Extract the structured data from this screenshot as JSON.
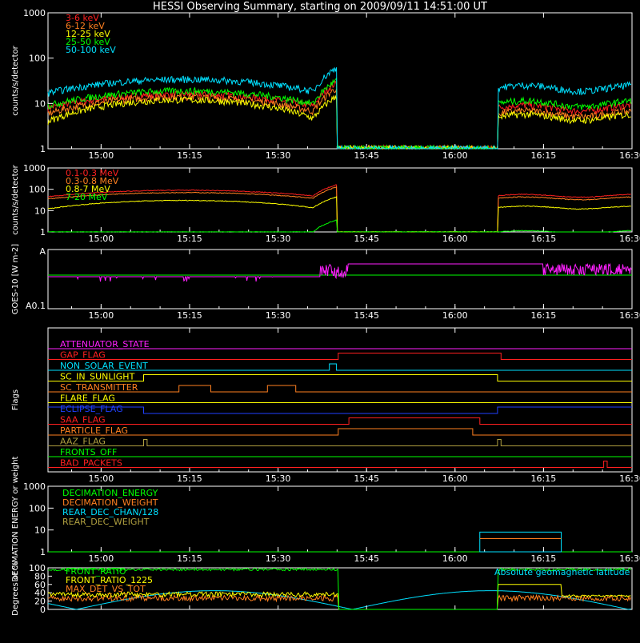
{
  "title": "HESSI Observing Summary, starting on 2009/09/11 14:51:00 UT",
  "time_ticks": [
    "15:00",
    "15:15",
    "15:30",
    "15:45",
    "16:00",
    "16:15",
    "16:30"
  ],
  "colors": {
    "red": "#ff2020",
    "orange": "#ff8020",
    "yellow": "#ffff00",
    "green": "#00ff00",
    "cyan": "#00e0ff",
    "magenta": "#ff20ff",
    "blue": "#2040ff",
    "olive": "#b0a040",
    "white": "#ffffff",
    "darkred": "#ff2020"
  },
  "chart_data": [
    {
      "type": "line",
      "id": "lightcurve_low",
      "ylabel": "counts/s/detector",
      "y_scale": "log",
      "ylim": [
        1,
        1000
      ],
      "y_ticks": [
        "1",
        "10",
        "100",
        "1000"
      ],
      "series": [
        {
          "name": "3-6 keV",
          "color": "#ff2020",
          "start": 8,
          "peak": 16,
          "post": 8
        },
        {
          "name": "6-12 keV",
          "color": "#ff8020",
          "start": 6,
          "peak": 14,
          "post": 6
        },
        {
          "name": "12-25 keV",
          "color": "#ffff00",
          "start": 4,
          "peak": 12,
          "post": 5
        },
        {
          "name": "25-50 keV",
          "color": "#00ff00",
          "start": 9,
          "peak": 19,
          "post": 10
        },
        {
          "name": "50-100 keV",
          "color": "#00e0ff",
          "start": 17,
          "peak": 34,
          "post": 22
        }
      ]
    },
    {
      "type": "line",
      "id": "lightcurve_high",
      "ylabel": "counts/s/detector",
      "y_scale": "log",
      "ylim": [
        1,
        1000
      ],
      "y_ticks": [
        "1",
        "10",
        "100",
        "1000"
      ],
      "series": [
        {
          "name": "0.1-0.3 MeV",
          "color": "#ff2020",
          "start": 45,
          "peak": 90,
          "post": 50
        },
        {
          "name": "0.3-0.8 MeV",
          "color": "#ff8020",
          "start": 35,
          "peak": 70,
          "post": 38
        },
        {
          "name": "0.8-7 MeV",
          "color": "#ffff00",
          "start": 12,
          "peak": 30,
          "post": 14
        },
        {
          "name": "7-20 MeV",
          "color": "#00ff00",
          "start": 1,
          "peak": 1,
          "post": 1
        }
      ]
    },
    {
      "type": "line",
      "id": "goes",
      "ylabel": "GOES-10 [W m-2]",
      "y_ticks_top": "A",
      "y_ticks_bottom": "A0.1",
      "series": [
        {
          "name": "GOES low",
          "color": "#ff20ff"
        },
        {
          "name": "GOES level",
          "color": "#00ff00"
        }
      ]
    },
    {
      "type": "line",
      "id": "flags",
      "ylabel": "Flags",
      "series": [
        {
          "name": "ATTENUATOR_STATE",
          "color": "#ff20ff",
          "segments": [
            [
              14.85,
              0
            ]
          ]
        },
        {
          "name": "GAP_FLAG",
          "color": "#ff2020",
          "segments": [
            [
              14.85,
              0
            ],
            [
              15.67,
              1
            ],
            [
              16.13,
              0
            ]
          ]
        },
        {
          "name": "NON_SOLAR_EVENT",
          "color": "#00e0ff",
          "segments": [
            [
              14.85,
              0
            ],
            [
              15.645,
              1
            ],
            [
              15.665,
              0
            ]
          ]
        },
        {
          "name": "SC_IN_SUNLIGHT",
          "color": "#ffff00",
          "segments": [
            [
              14.85,
              0
            ],
            [
              15.12,
              1
            ],
            [
              16.12,
              0
            ]
          ]
        },
        {
          "name": "SC_TRANSMITTER",
          "color": "#ff8020",
          "segments": [
            [
              14.85,
              0
            ],
            [
              15.22,
              1
            ],
            [
              15.31,
              0
            ],
            [
              15.47,
              1
            ],
            [
              15.55,
              0
            ]
          ]
        },
        {
          "name": "FLARE_FLAG",
          "color": "#ffff00",
          "segments": [
            [
              14.85,
              0
            ]
          ]
        },
        {
          "name": "ECLIPSE_FLAG",
          "color": "#2040ff",
          "segments": [
            [
              14.85,
              1
            ],
            [
              15.12,
              0
            ],
            [
              16.12,
              1
            ]
          ]
        },
        {
          "name": "SAA_FLAG",
          "color": "#ff2020",
          "segments": [
            [
              14.85,
              0
            ],
            [
              15.7,
              1
            ],
            [
              16.07,
              0
            ]
          ]
        },
        {
          "name": "PARTICLE_FLAG",
          "color": "#ff8020",
          "segments": [
            [
              14.85,
              0
            ],
            [
              15.67,
              1
            ],
            [
              16.05,
              0
            ]
          ]
        },
        {
          "name": "AAZ_FLAG",
          "color": "#b0a040",
          "segments": [
            [
              14.85,
              0
            ],
            [
              15.12,
              1
            ],
            [
              15.13,
              0
            ],
            [
              16.12,
              1
            ],
            [
              16.13,
              0
            ]
          ]
        },
        {
          "name": "FRONTS_OFF",
          "color": "#00ff00",
          "segments": [
            [
              14.85,
              0
            ]
          ]
        },
        {
          "name": "BAD_PACKETS",
          "color": "#ff2020",
          "segments": [
            [
              14.85,
              0
            ],
            [
              16.42,
              1
            ],
            [
              16.43,
              0
            ]
          ]
        }
      ]
    },
    {
      "type": "line",
      "id": "decimation",
      "ylabel": "DECIMATION ENERGY or weight",
      "y_scale": "log",
      "ylim": [
        1,
        1000
      ],
      "y_ticks": [
        "1",
        "10",
        "100",
        "1000"
      ],
      "series": [
        {
          "name": "DECIMATION_ENERGY",
          "color": "#00ff00"
        },
        {
          "name": "DECIMATION_WEIGHT",
          "color": "#ff8020"
        },
        {
          "name": "REAR_DEC_CHAN/128",
          "color": "#00e0ff"
        },
        {
          "name": "REAR_DEC_WEIGHT",
          "color": "#b0a040"
        }
      ]
    },
    {
      "type": "line",
      "id": "geomag",
      "ylabel": "Degrees or %",
      "ylim": [
        0,
        100
      ],
      "y_ticks": [
        "0",
        "20",
        "40",
        "60",
        "80",
        "100"
      ],
      "annotation": "Absolute geomagnetic latitude",
      "series": [
        {
          "name": "FRONT_RATIO",
          "color": "#00ff00"
        },
        {
          "name": "FRONT_RATIO_1225",
          "color": "#ffff00"
        },
        {
          "name": "MAX_DET_VS_TOT",
          "color": "#ff8020"
        }
      ]
    }
  ]
}
